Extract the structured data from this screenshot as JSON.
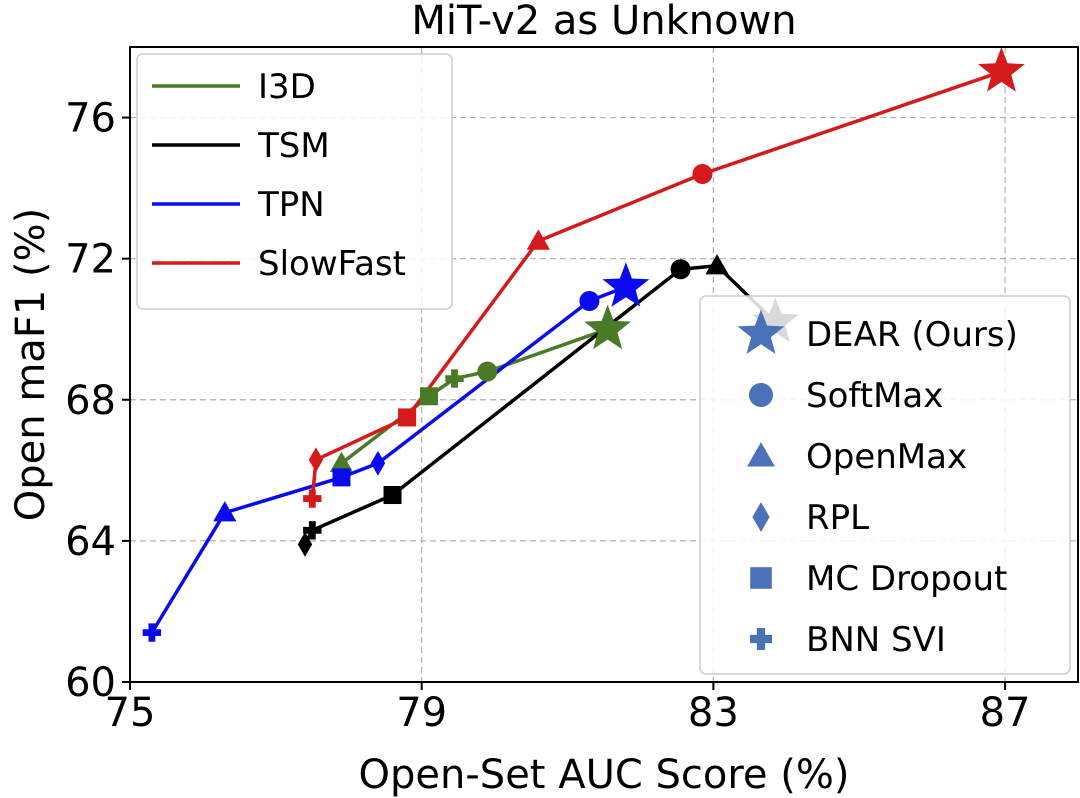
{
  "chart_data": {
    "type": "line",
    "title": "MiT-v2 as Unknown",
    "xlabel": "Open-Set AUC Score (%)",
    "ylabel": "Open maF1 (%)",
    "xlim": [
      75,
      88
    ],
    "ylim": [
      60,
      78
    ],
    "xticks": [
      75,
      79,
      83,
      87
    ],
    "yticks": [
      60,
      64,
      68,
      72,
      76
    ],
    "grid": true,
    "series_legend_position": "top-left",
    "marker_legend_position": "right",
    "series": [
      {
        "name": "I3D",
        "color": "#4a7a27",
        "points": [
          {
            "method": "OpenMax",
            "x": 77.9,
            "y": 66.2
          },
          {
            "method": "MC Dropout",
            "x": 79.1,
            "y": 68.1
          },
          {
            "method": "BNN SVI",
            "x": 79.45,
            "y": 68.6
          },
          {
            "method": "SoftMax",
            "x": 79.9,
            "y": 68.8
          },
          {
            "method": "DEAR (Ours)",
            "x": 81.55,
            "y": 70.0
          }
        ]
      },
      {
        "name": "TSM",
        "color": "#000000",
        "points": [
          {
            "method": "RPL",
            "x": 77.4,
            "y": 63.9
          },
          {
            "method": "BNN SVI",
            "x": 77.5,
            "y": 64.3
          },
          {
            "method": "MC Dropout",
            "x": 78.6,
            "y": 65.3
          },
          {
            "method": "SoftMax",
            "x": 82.55,
            "y": 71.7
          },
          {
            "method": "OpenMax",
            "x": 83.05,
            "y": 71.8
          },
          {
            "method": "DEAR (Ours)",
            "x": 83.85,
            "y": 70.2
          }
        ]
      },
      {
        "name": "TPN",
        "color": "#0a0af0",
        "points": [
          {
            "method": "BNN SVI",
            "x": 75.3,
            "y": 61.4
          },
          {
            "method": "OpenMax",
            "x": 76.3,
            "y": 64.8
          },
          {
            "method": "MC Dropout",
            "x": 77.9,
            "y": 65.8
          },
          {
            "method": "RPL",
            "x": 78.4,
            "y": 66.2
          },
          {
            "method": "SoftMax",
            "x": 81.3,
            "y": 70.8
          },
          {
            "method": "DEAR (Ours)",
            "x": 81.8,
            "y": 71.2
          }
        ]
      },
      {
        "name": "SlowFast",
        "color": "#d41a1a",
        "points": [
          {
            "method": "BNN SVI",
            "x": 77.5,
            "y": 65.2
          },
          {
            "method": "RPL",
            "x": 77.55,
            "y": 66.3
          },
          {
            "method": "MC Dropout",
            "x": 78.8,
            "y": 67.5
          },
          {
            "method": "OpenMax",
            "x": 80.6,
            "y": 72.5
          },
          {
            "method": "SoftMax",
            "x": 82.85,
            "y": 74.4
          },
          {
            "method": "DEAR (Ours)",
            "x": 86.95,
            "y": 77.3
          }
        ]
      }
    ],
    "marker_legend": [
      {
        "label": "DEAR (Ours)",
        "marker": "star"
      },
      {
        "label": "SoftMax",
        "marker": "circle"
      },
      {
        "label": "OpenMax",
        "marker": "triangle"
      },
      {
        "label": "RPL",
        "marker": "diamond"
      },
      {
        "label": "MC Dropout",
        "marker": "square"
      },
      {
        "label": "BNN SVI",
        "marker": "plus"
      }
    ],
    "marker_legend_color": "#4a72b8"
  }
}
